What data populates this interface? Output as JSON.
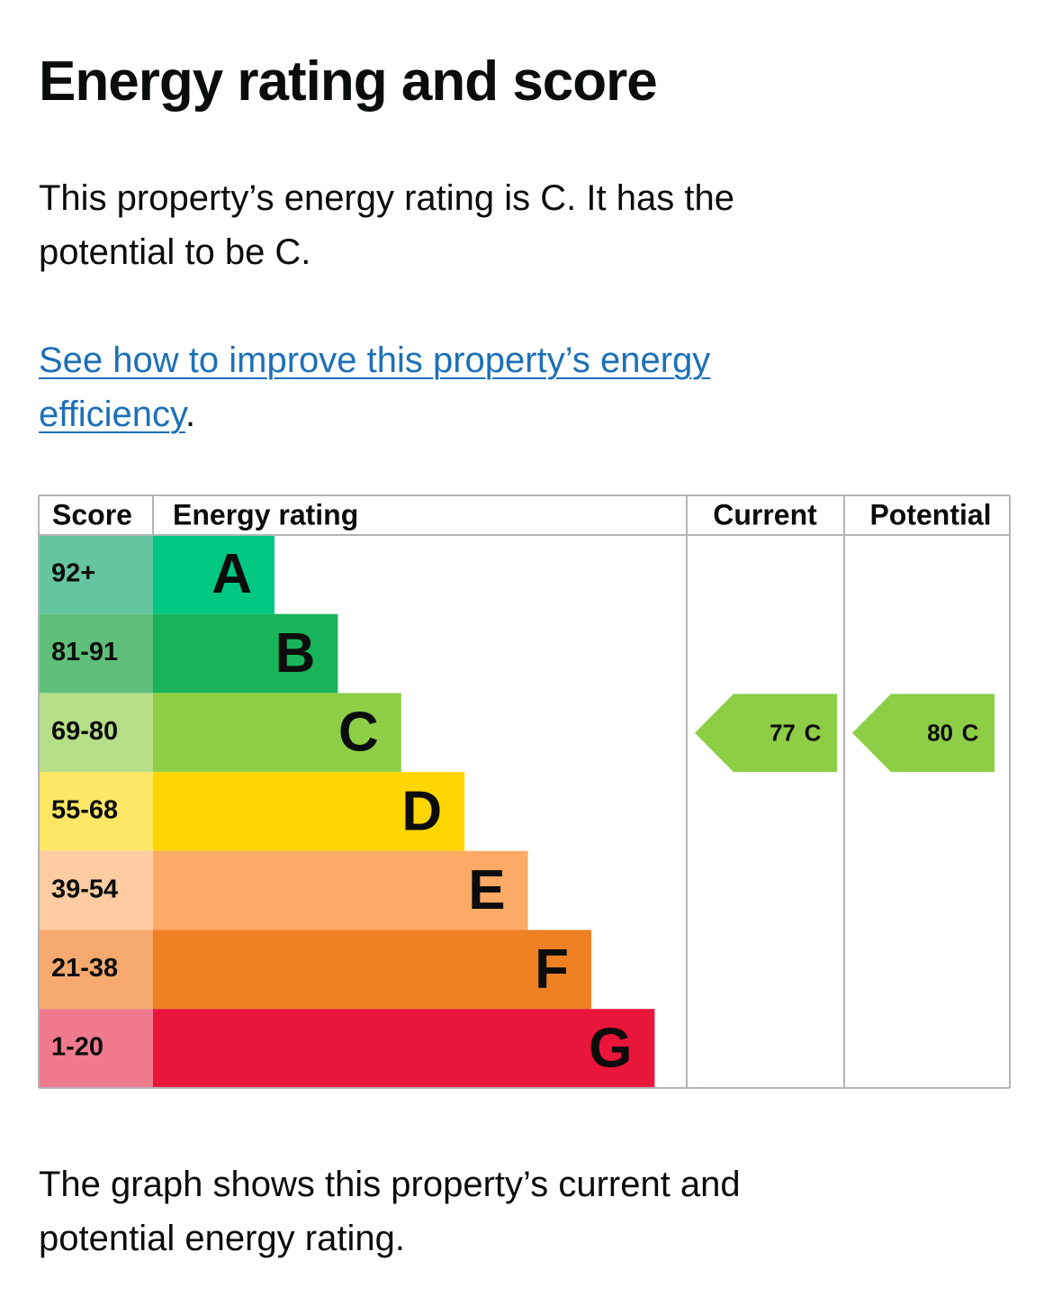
{
  "heading": "Energy rating and score",
  "summary": "This property’s energy rating is C. It has the potential to be C.",
  "link": {
    "text": "See how to improve this property’s energy efficiency",
    "suffix": "."
  },
  "rating": {
    "headers": [
      "Score",
      "Energy rating",
      "Current",
      "Potential"
    ],
    "bands": [
      {
        "score": "92+",
        "letter": "A",
        "color": "#00c781",
        "score_color": "#64c5a0"
      },
      {
        "score": "81-91",
        "letter": "B",
        "color": "#19b459",
        "score_color": "#5ebf7a"
      },
      {
        "score": "69-80",
        "letter": "C",
        "color": "#8dce46",
        "score_color": "#b5de88"
      },
      {
        "score": "55-68",
        "letter": "D",
        "color": "#ffd500",
        "score_color": "#ffe766"
      },
      {
        "score": "39-54",
        "letter": "E",
        "color": "#fcaa65",
        "score_color": "#fdcca2"
      },
      {
        "score": "21-38",
        "letter": "F",
        "color": "#ef8023",
        "score_color": "#f5a96e"
      },
      {
        "score": "1-20",
        "letter": "G",
        "color": "#e9153b",
        "score_color": "#f07a8d"
      }
    ],
    "current": {
      "score": 77,
      "band": "C"
    },
    "potential": {
      "score": 80,
      "band": "C"
    }
  },
  "caption": "The graph shows this property’s current and potential energy rating."
}
